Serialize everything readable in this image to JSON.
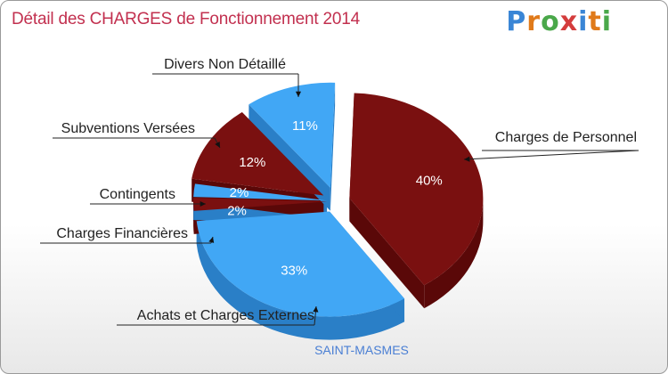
{
  "title": "Détail des CHARGES de Fonctionnement 2014",
  "logo": "Proxiti",
  "subtitle": "SAINT-MASMES",
  "colors": {
    "blue": "#41a7f5",
    "blue_dark": "#2a7fc7",
    "red": "#7a1010",
    "red_dark": "#5a0808"
  },
  "chart_data": {
    "type": "pie",
    "title": "Détail des CHARGES de Fonctionnement 2014",
    "slices": [
      {
        "name": "Charges de Personnel",
        "value": 40,
        "label": "40%",
        "color": "red"
      },
      {
        "name": "Achats et Charges Externes",
        "value": 33,
        "label": "33%",
        "color": "blue"
      },
      {
        "name": "Charges Financières",
        "value": 2,
        "label": "2%",
        "color": "red"
      },
      {
        "name": "Contingents",
        "value": 2,
        "label": "2%",
        "color": "blue"
      },
      {
        "name": "Subventions Versées",
        "value": 12,
        "label": "12%",
        "color": "red"
      },
      {
        "name": "Divers Non Détaillé",
        "value": 11,
        "label": "11%",
        "color": "blue"
      }
    ]
  }
}
